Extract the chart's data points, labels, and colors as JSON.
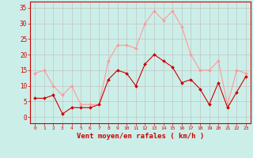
{
  "hours": [
    0,
    1,
    2,
    3,
    4,
    5,
    6,
    7,
    8,
    9,
    10,
    11,
    12,
    13,
    14,
    15,
    16,
    17,
    18,
    19,
    20,
    21,
    22,
    23
  ],
  "wind_avg": [
    6,
    6,
    7,
    1,
    3,
    3,
    3,
    4,
    12,
    15,
    14,
    10,
    17,
    20,
    18,
    16,
    11,
    12,
    9,
    4,
    11,
    3,
    8,
    13
  ],
  "wind_gust": [
    14,
    15,
    10,
    7,
    10,
    4,
    4,
    4,
    18,
    23,
    23,
    22,
    30,
    34,
    31,
    34,
    29,
    20,
    15,
    15,
    18,
    4,
    15,
    14
  ],
  "bg_color": "#cceee8",
  "grid_color": "#bbbbbb",
  "avg_color": "#cc0000",
  "gust_color": "#ff9999",
  "xlabel": "Vent moyen/en rafales ( km/h )",
  "xlabel_color": "#cc0000",
  "tick_color": "#cc0000",
  "spine_color": "#cc0000",
  "ylim": [
    -2,
    37
  ],
  "yticks": [
    0,
    5,
    10,
    15,
    20,
    25,
    30,
    35
  ],
  "marker": "D",
  "markersize": 2.0,
  "linewidth": 0.8
}
